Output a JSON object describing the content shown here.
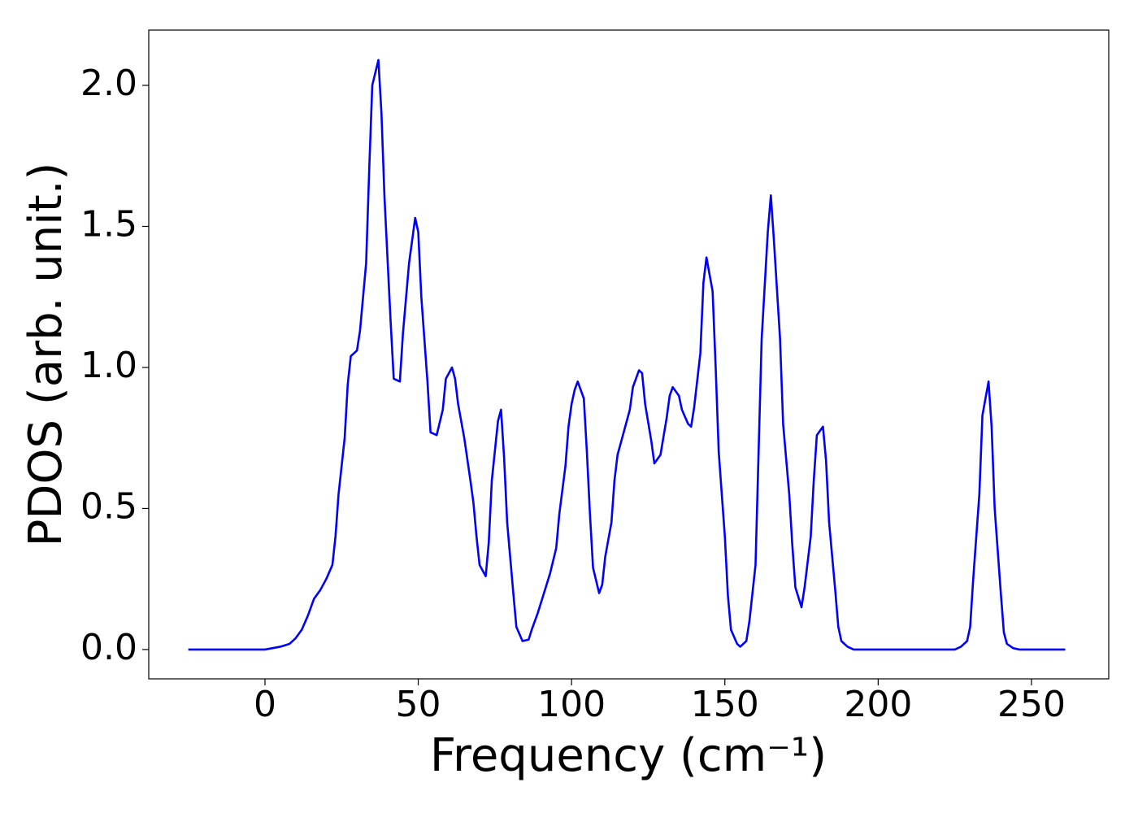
{
  "chart_data": {
    "type": "line",
    "xlabel": "Frequency (cm⁻¹)",
    "ylabel": "PDOS (arb. unit.)",
    "x": [
      -25,
      -10,
      0,
      5,
      8,
      10,
      12,
      14,
      16,
      18,
      20,
      22,
      23,
      24,
      26,
      27,
      28,
      30,
      31,
      33,
      34,
      35,
      37,
      38,
      39,
      41,
      42,
      44,
      45,
      47,
      49,
      50,
      51,
      53,
      54,
      56,
      58,
      59,
      61,
      62,
      63,
      65,
      67,
      68,
      69,
      70,
      72,
      73,
      74,
      76,
      77,
      78,
      79,
      81,
      82,
      84,
      86,
      87,
      89,
      91,
      93,
      95,
      96,
      98,
      99,
      100,
      101,
      102,
      104,
      105,
      106,
      107,
      109,
      110,
      111,
      113,
      114,
      115,
      117,
      119,
      120,
      122,
      123,
      124,
      126,
      127,
      129,
      131,
      132,
      133,
      135,
      136,
      138,
      139,
      140,
      142,
      143,
      144,
      146,
      147,
      148,
      150,
      151,
      152,
      154,
      155,
      157,
      158,
      160,
      161,
      162,
      164,
      165,
      166,
      168,
      169,
      171,
      172,
      173,
      175,
      176,
      178,
      179,
      180,
      182,
      183,
      184,
      186,
      187,
      188,
      190,
      192,
      200,
      225,
      227,
      229,
      230,
      231,
      233,
      234,
      236,
      237,
      238,
      240,
      241,
      242,
      244,
      246,
      261
    ],
    "series": [
      {
        "name": "PDOS",
        "color": "#0000ff",
        "values": [
          0,
          0,
          0,
          0.01,
          0.02,
          0.04,
          0.07,
          0.12,
          0.18,
          0.21,
          0.25,
          0.3,
          0.4,
          0.55,
          0.75,
          0.94,
          1.04,
          1.06,
          1.13,
          1.37,
          1.7,
          2.0,
          2.09,
          1.9,
          1.6,
          1.16,
          0.96,
          0.95,
          1.12,
          1.37,
          1.53,
          1.48,
          1.25,
          0.95,
          0.77,
          0.76,
          0.85,
          0.96,
          1.0,
          0.96,
          0.87,
          0.75,
          0.6,
          0.52,
          0.4,
          0.3,
          0.26,
          0.38,
          0.6,
          0.81,
          0.85,
          0.68,
          0.45,
          0.2,
          0.08,
          0.03,
          0.035,
          0.07,
          0.13,
          0.2,
          0.27,
          0.36,
          0.48,
          0.65,
          0.79,
          0.87,
          0.92,
          0.95,
          0.89,
          0.7,
          0.48,
          0.29,
          0.2,
          0.23,
          0.33,
          0.45,
          0.6,
          0.69,
          0.77,
          0.85,
          0.93,
          0.99,
          0.98,
          0.87,
          0.74,
          0.66,
          0.69,
          0.82,
          0.9,
          0.93,
          0.9,
          0.85,
          0.8,
          0.79,
          0.86,
          1.05,
          1.3,
          1.39,
          1.27,
          1.0,
          0.7,
          0.4,
          0.19,
          0.07,
          0.02,
          0.01,
          0.03,
          0.1,
          0.3,
          0.7,
          1.1,
          1.48,
          1.61,
          1.45,
          1.1,
          0.8,
          0.55,
          0.37,
          0.22,
          0.15,
          0.22,
          0.4,
          0.6,
          0.76,
          0.79,
          0.67,
          0.45,
          0.21,
          0.08,
          0.03,
          0.01,
          0,
          0,
          0,
          0.01,
          0.03,
          0.08,
          0.25,
          0.55,
          0.83,
          0.95,
          0.79,
          0.5,
          0.2,
          0.06,
          0.02,
          0.005,
          0,
          0
        ]
      }
    ],
    "xlim": [
      -37.9,
      275.2
    ],
    "ylim": [
      -0.104,
      2.196
    ],
    "xticks": [
      0,
      50,
      100,
      150,
      200,
      250
    ],
    "yticks": [
      {
        "value": 0,
        "label": "0.0"
      },
      {
        "value": 0.5,
        "label": "0.5"
      },
      {
        "value": 1,
        "label": "1.0"
      },
      {
        "value": 1.5,
        "label": "1.5"
      },
      {
        "value": 2,
        "label": "2.0"
      }
    ],
    "grid": false
  }
}
